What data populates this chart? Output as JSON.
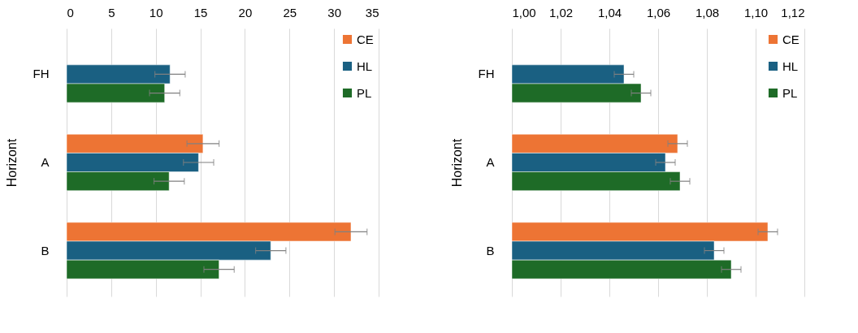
{
  "chart_data": [
    {
      "type": "bar",
      "orientation": "horizontal",
      "ylabel": "Horizont",
      "categories": [
        "FH",
        "A",
        "B"
      ],
      "xlim": [
        0,
        35
      ],
      "xticks": [
        0,
        5,
        10,
        15,
        20,
        25,
        30,
        35
      ],
      "grid": "x",
      "legend": "top right",
      "series": [
        {
          "name": "CE",
          "color": "#ed7434",
          "values": [
            null,
            15.3,
            31.9
          ],
          "errors": [
            null,
            1.8,
            1.8
          ]
        },
        {
          "name": "HL",
          "color": "#1a6082",
          "values": [
            11.6,
            14.8,
            22.9
          ],
          "errors": [
            1.7,
            1.7,
            1.7
          ]
        },
        {
          "name": "PL",
          "color": "#1e6b27",
          "values": [
            11.0,
            11.5,
            17.1
          ],
          "errors": [
            1.7,
            1.7,
            1.7
          ]
        }
      ]
    },
    {
      "type": "bar",
      "orientation": "horizontal",
      "ylabel": "Horizont",
      "categories": [
        "FH",
        "A",
        "B"
      ],
      "xlim": [
        1.0,
        1.12
      ],
      "xticks": [
        {
          "value": 1.0,
          "label": "1,00"
        },
        {
          "value": 1.02,
          "label": "1,02"
        },
        {
          "value": 1.04,
          "label": "1,04"
        },
        {
          "value": 1.06,
          "label": "1,06"
        },
        {
          "value": 1.08,
          "label": "1,08"
        },
        {
          "value": 1.1,
          "label": "1,10"
        },
        {
          "value": 1.12,
          "label": "1,12"
        }
      ],
      "grid": "x",
      "legend": "top right",
      "series": [
        {
          "name": "CE",
          "color": "#ed7434",
          "values": [
            null,
            1.068,
            1.105
          ],
          "errors": [
            null,
            0.004,
            0.004
          ]
        },
        {
          "name": "HL",
          "color": "#1a6082",
          "values": [
            1.046,
            1.063,
            1.083
          ],
          "errors": [
            0.004,
            0.004,
            0.004
          ]
        },
        {
          "name": "PL",
          "color": "#1e6b27",
          "values": [
            1.053,
            1.069,
            1.09
          ],
          "errors": [
            0.004,
            0.004,
            0.004
          ]
        }
      ]
    }
  ]
}
